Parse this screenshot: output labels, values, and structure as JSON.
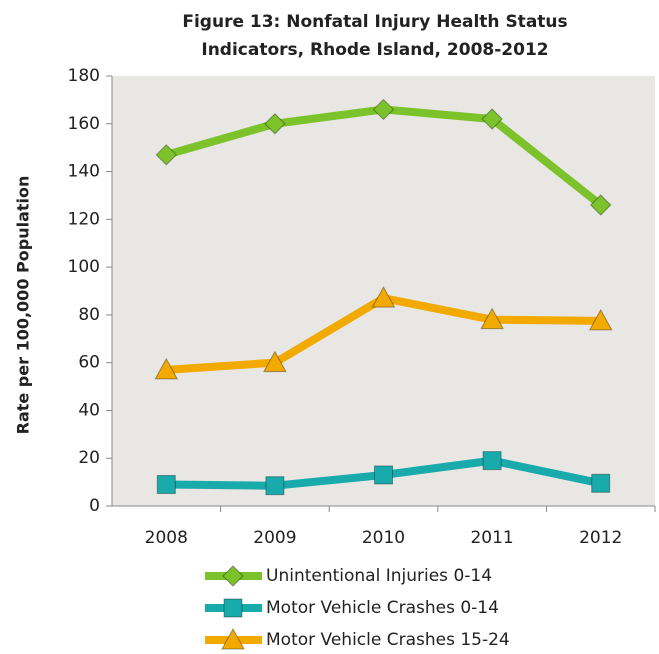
{
  "chart_data": {
    "type": "line",
    "title": [
      "Figure 13: Nonfatal Injury Health Status",
      "Indicators, Rhode Island, 2008-2012"
    ],
    "ylabel": "Rate per 100,000 Population",
    "categories": [
      "2008",
      "2009",
      "2010",
      "2011",
      "2012"
    ],
    "series": [
      {
        "name": "Unintentional Injuries 0-14",
        "color": "#7cc22a",
        "marker": "diamond",
        "values": [
          147,
          160,
          166,
          162,
          126
        ]
      },
      {
        "name": "Motor Vehicle Crashes 0-14",
        "color": "#19abab",
        "marker": "square",
        "values": [
          9,
          8.5,
          13,
          19,
          9.5
        ]
      },
      {
        "name": "Motor Vehicle Crashes 15-24",
        "color": "#f2a900",
        "marker": "triangle",
        "values": [
          57,
          60,
          87,
          78,
          77.5
        ]
      }
    ],
    "ylim": [
      0,
      180
    ],
    "yticks": [
      0,
      20,
      40,
      60,
      80,
      100,
      120,
      140,
      160,
      180
    ],
    "grid": false,
    "legend": "bottom"
  }
}
